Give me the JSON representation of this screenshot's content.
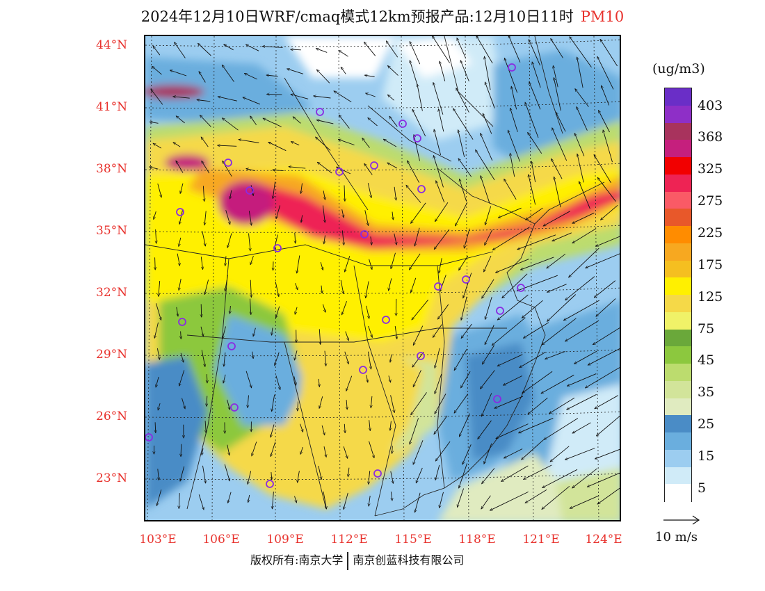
{
  "title": {
    "text": "2024年12月10日WRF/cmaq模式12km预报产品:12月10日11时",
    "variable": "PM10"
  },
  "map": {
    "lat_labels": [
      "44°N",
      "41°N",
      "38°N",
      "35°N",
      "32°N",
      "29°N",
      "26°N",
      "23°N"
    ],
    "lon_labels": [
      "103°E",
      "106°E",
      "109°E",
      "112°E",
      "115°E",
      "118°E",
      "121°E",
      "124°E"
    ]
  },
  "legend": {
    "unit": "(ug/m3)",
    "labels": [
      "403",
      "368",
      "325",
      "275",
      "225",
      "175",
      "125",
      "75",
      "45",
      "35",
      "25",
      "15",
      "5"
    ],
    "colors": [
      "#6a2ec7",
      "#8e2fc7",
      "#a8335d",
      "#c51f7d",
      "#f20000",
      "#ee2354",
      "#fa5a66",
      "#e8582a",
      "#ff8c00",
      "#f7a820",
      "#f5bf20",
      "#fff000",
      "#f5d948",
      "#f0f268",
      "#6aa83a",
      "#8cc83e",
      "#bcdc6e",
      "#d2e49a",
      "#e0ebc0",
      "#4a8cc6",
      "#6aaede",
      "#9ccdf0",
      "#d0ebf8",
      "#ffffff"
    ]
  },
  "wind_reference": {
    "label": "10 m/s"
  },
  "footer": {
    "left": "版权所有:南京大学",
    "right": "南京创蓝科技有限公司"
  }
}
